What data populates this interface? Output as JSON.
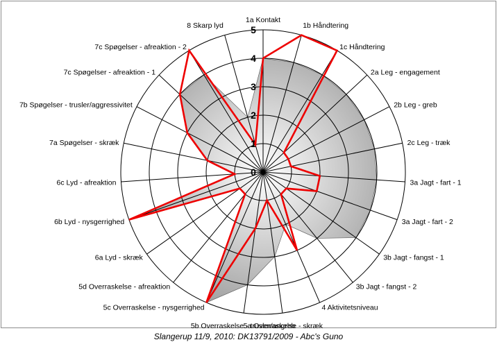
{
  "chart_data": {
    "type": "radar",
    "title": "",
    "caption": "Slangerup 11/9, 2010: DK13791/2009 - Abc's Guno",
    "rlim": [
      0,
      5
    ],
    "ticks": [
      "0",
      "1",
      "2",
      "3",
      "4",
      "5"
    ],
    "grid": true,
    "categories": [
      "1a Kontakt",
      "1b Håndtering",
      "1c Håndtering",
      "2a Leg - engagement",
      "2b Leg - greb",
      "2c Leg - træk",
      "3a Jagt - fart - 1",
      "3a Jagt - fart - 2",
      "3b Jagt - fangst - 1",
      "3b Jagt - fangst - 2",
      "4 Aktivitetsniveau",
      "5a Overraskelse - skræk",
      "5b Overraskelse - trusler/angreb",
      "5c Overraskelse - nysgerrighed",
      "5d Overraskelse - afreaktion",
      "6a Lyd - skræk",
      "6b Lyd - nysgerrighed",
      "6c Lyd - afreaktion",
      "7a Spøgelser - skræk",
      "7b Spøgelser - trusler/aggressivitet",
      "7c Spøgelser - afreaktion - 1",
      "7c Spøgelser - afreaktion - 2",
      "8 Skarp lyd"
    ],
    "series": [
      {
        "values": [
          4,
          4,
          4,
          4,
          4,
          4,
          4,
          4,
          4,
          3,
          2,
          3,
          4,
          5,
          1,
          1,
          5,
          1,
          2,
          3,
          4,
          4,
          2
        ]
      },
      {
        "values": [
          4,
          5,
          5,
          1,
          1,
          1,
          2,
          2,
          1,
          1,
          3,
          1,
          2,
          5,
          1,
          1,
          5,
          1,
          2,
          3,
          4,
          5,
          1
        ]
      }
    ],
    "colors": {
      "area": "#a0a0a0",
      "line": "#ee0000",
      "grid": "#000000"
    }
  }
}
